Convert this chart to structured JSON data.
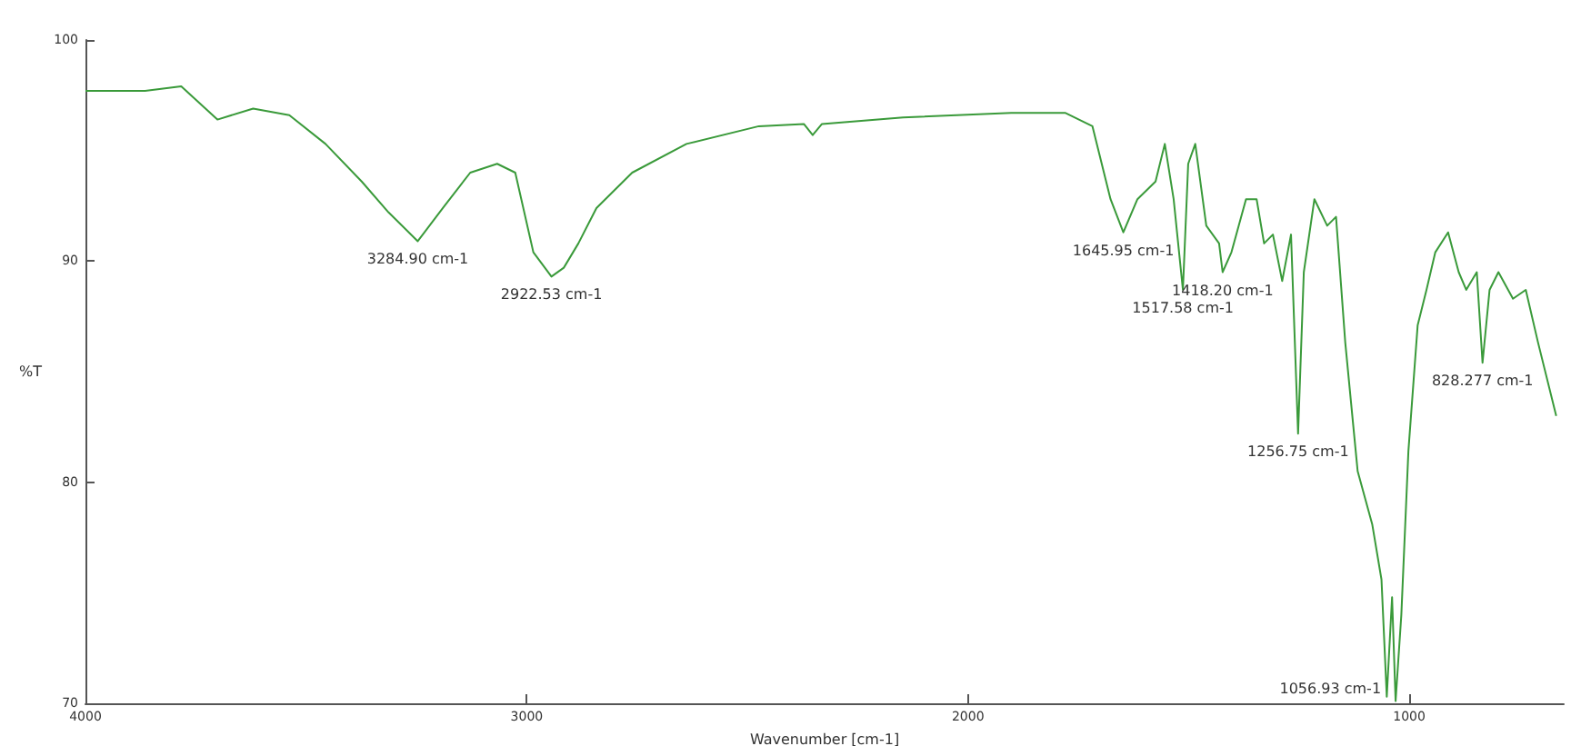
{
  "chart_data": {
    "type": "line",
    "xlabel": "Wavenumber [cm-1]",
    "ylabel": "%T",
    "xlim": [
      4000,
      650
    ],
    "xticks": [
      4000,
      3000,
      2000,
      1000
    ],
    "ylim": [
      70,
      100
    ],
    "yticks": [
      70,
      80,
      90,
      100
    ],
    "grid": false,
    "marker": "none",
    "series": [
      {
        "color": "#3a9a3a",
        "x": [
          4000,
          3865,
          3783,
          3701,
          3620,
          3538,
          3456,
          3374,
          3313,
          3247,
          3190,
          3128,
          3067,
          3026,
          2985,
          2944,
          2916,
          2883,
          2842,
          2761,
          2638,
          2474,
          2372,
          2352,
          2331,
          2147,
          1902,
          1779,
          1718,
          1677,
          1648,
          1616,
          1575,
          1554,
          1534,
          1513,
          1501,
          1485,
          1460,
          1431,
          1423,
          1403,
          1370,
          1346,
          1329,
          1309,
          1288,
          1268,
          1252,
          1239,
          1215,
          1186,
          1166,
          1145,
          1117,
          1084,
          1063,
          1051,
          1039,
          1031,
          1018,
          1002,
          981,
          961,
          941,
          912,
          888,
          871,
          847,
          834,
          818,
          798,
          765,
          736,
          708,
          667
        ],
        "values": [
          97.7,
          97.7,
          97.9,
          96.4,
          96.9,
          96.6,
          95.3,
          93.6,
          92.2,
          90.9,
          92.4,
          94.0,
          94.4,
          94.0,
          90.4,
          89.3,
          89.7,
          90.8,
          92.4,
          94.0,
          95.3,
          96.1,
          96.2,
          95.7,
          96.2,
          96.5,
          96.7,
          96.7,
          96.1,
          92.8,
          91.3,
          92.8,
          93.6,
          95.3,
          92.8,
          88.7,
          94.4,
          95.3,
          91.6,
          90.8,
          89.5,
          90.4,
          92.8,
          92.8,
          90.8,
          91.2,
          89.1,
          91.2,
          82.2,
          89.5,
          92.8,
          91.6,
          92.0,
          86.3,
          80.5,
          78.1,
          75.6,
          70.3,
          74.8,
          70.1,
          74.0,
          81.4,
          87.1,
          88.7,
          90.4,
          91.3,
          89.5,
          88.7,
          89.5,
          85.4,
          88.7,
          89.5,
          88.3,
          88.7,
          86.3,
          83.0
        ]
      }
    ],
    "annotations": [
      {
        "text": "3284.90 cm-1",
        "x": 3247,
        "y": 90.9
      },
      {
        "text": "2922.53 cm-1",
        "x": 2944,
        "y": 89.3
      },
      {
        "text": "1645.95 cm-1",
        "x": 1648,
        "y": 91.3
      },
      {
        "text": "1517.58 cm-1",
        "x": 1513,
        "y": 88.7
      },
      {
        "text": "1418.20 cm-1",
        "x": 1423,
        "y": 89.5
      },
      {
        "text": "1256.75 cm-1",
        "x": 1252,
        "y": 82.2
      },
      {
        "text": "1056.93 cm-1",
        "x": 1031,
        "y": 70.1
      },
      {
        "text": "828.277 cm-1",
        "x": 834,
        "y": 85.4
      }
    ]
  }
}
